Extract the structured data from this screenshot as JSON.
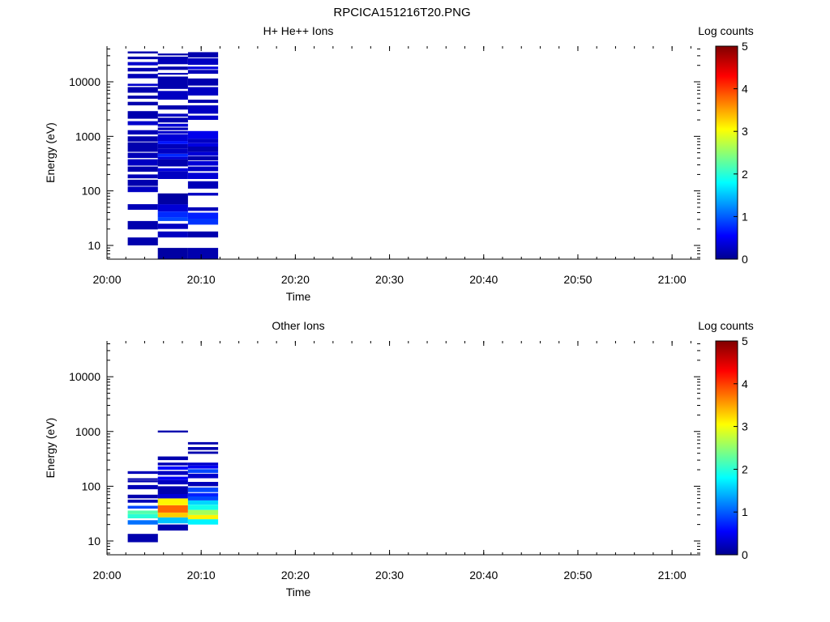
{
  "figure_title": "RPCICA151216T20.PNG",
  "chart_data": [
    {
      "type": "heatmap",
      "title": "H+ He++ Ions",
      "xlabel": "Time",
      "ylabel": "Energy (eV)",
      "yscale": "log",
      "xlim": [
        "20:00",
        "21:03"
      ],
      "ylim": [
        5.6,
        45000
      ],
      "xticks": [
        "20:00",
        "20:10",
        "20:20",
        "20:30",
        "20:40",
        "20:50",
        "21:00"
      ],
      "yticks": [
        "10",
        "100",
        "1000",
        "10000"
      ],
      "colorbar": {
        "label": "Log counts",
        "range": [
          0,
          5
        ],
        "ticks": [
          "0",
          "1",
          "2",
          "3",
          "4",
          "5"
        ]
      },
      "columns": [
        {
          "start": "20:02.2",
          "end": "20:05.4",
          "bins": [
            {
              "lo": 10,
              "hi": 14,
              "v": 0.15
            },
            {
              "lo": 19.6,
              "hi": 28,
              "v": 0.15
            },
            {
              "lo": 45,
              "hi": 57,
              "v": 0.2
            },
            {
              "lo": 95,
              "hi": 120,
              "v": 0.25
            },
            {
              "lo": 123,
              "hi": 160,
              "v": 0.15
            },
            {
              "lo": 170,
              "hi": 200,
              "v": 0.2
            },
            {
              "lo": 225,
              "hi": 280,
              "v": 0.15
            },
            {
              "lo": 290,
              "hi": 380,
              "v": 0.25
            },
            {
              "lo": 400,
              "hi": 500,
              "v": 0.2
            },
            {
              "lo": 520,
              "hi": 780,
              "v": 0.15
            },
            {
              "lo": 800,
              "hi": 1000,
              "v": 0.15
            },
            {
              "lo": 1080,
              "hi": 1300,
              "v": 0.2
            },
            {
              "lo": 1600,
              "hi": 1900,
              "v": 0.3
            },
            {
              "lo": 2100,
              "hi": 2900,
              "v": 0.15
            },
            {
              "lo": 3700,
              "hi": 4300,
              "v": 0.15
            },
            {
              "lo": 4900,
              "hi": 5600,
              "v": 0.15
            },
            {
              "lo": 6300,
              "hi": 8000,
              "v": 0.15
            },
            {
              "lo": 8400,
              "hi": 9200,
              "v": 0.3
            },
            {
              "lo": 11600,
              "hi": 14000,
              "v": 0.2
            },
            {
              "lo": 15500,
              "hi": 18000,
              "v": 0.15
            },
            {
              "lo": 20000,
              "hi": 23000,
              "v": 0.3
            },
            {
              "lo": 26000,
              "hi": 29000,
              "v": 0.15
            },
            {
              "lo": 33000,
              "hi": 36000,
              "v": 0.15
            }
          ]
        },
        {
          "start": "20:05.4",
          "end": "20:08.6",
          "bins": [
            {
              "lo": 5.6,
              "hi": 9,
              "v": 0.1
            },
            {
              "lo": 14,
              "hi": 18,
              "v": 0.25
            },
            {
              "lo": 20,
              "hi": 25,
              "v": 0.25
            },
            {
              "lo": 28,
              "hi": 33,
              "v": 0.9
            },
            {
              "lo": 33,
              "hi": 42,
              "v": 0.75
            },
            {
              "lo": 42,
              "hi": 57,
              "v": 0.35
            },
            {
              "lo": 57,
              "hi": 90,
              "v": 0.1
            },
            {
              "lo": 165,
              "hi": 230,
              "v": 0.25
            },
            {
              "lo": 230,
              "hi": 260,
              "v": 0.4
            },
            {
              "lo": 280,
              "hi": 380,
              "v": 0.15
            },
            {
              "lo": 380,
              "hi": 420,
              "v": 0.35
            },
            {
              "lo": 420,
              "hi": 480,
              "v": 0.75
            },
            {
              "lo": 480,
              "hi": 600,
              "v": 0.25
            },
            {
              "lo": 600,
              "hi": 720,
              "v": 0.2
            },
            {
              "lo": 720,
              "hi": 820,
              "v": 0.65
            },
            {
              "lo": 820,
              "hi": 1100,
              "v": 0.35
            },
            {
              "lo": 1130,
              "hi": 1250,
              "v": 0.3
            },
            {
              "lo": 1300,
              "hi": 1450,
              "v": 0.2
            },
            {
              "lo": 1500,
              "hi": 1700,
              "v": 0.35
            },
            {
              "lo": 1800,
              "hi": 2200,
              "v": 0.15
            },
            {
              "lo": 2300,
              "hi": 2600,
              "v": 0.25
            },
            {
              "lo": 3100,
              "hi": 3700,
              "v": 0.15
            },
            {
              "lo": 4700,
              "hi": 6800,
              "v": 0.25
            },
            {
              "lo": 7400,
              "hi": 12500,
              "v": 0.15
            },
            {
              "lo": 13500,
              "hi": 14500,
              "v": 0.2
            },
            {
              "lo": 16500,
              "hi": 19000,
              "v": 0.15
            },
            {
              "lo": 21000,
              "hi": 29000,
              "v": 0.2
            },
            {
              "lo": 30500,
              "hi": 33000,
              "v": 0.15
            }
          ]
        },
        {
          "start": "20:08.6",
          "end": "20:11.8",
          "bins": [
            {
              "lo": 5.6,
              "hi": 9,
              "v": 0.15
            },
            {
              "lo": 14,
              "hi": 18,
              "v": 0.15
            },
            {
              "lo": 24,
              "hi": 31,
              "v": 0.8
            },
            {
              "lo": 31,
              "hi": 40,
              "v": 0.7
            },
            {
              "lo": 43,
              "hi": 50,
              "v": 0.2
            },
            {
              "lo": 82,
              "hi": 92,
              "v": 0.25
            },
            {
              "lo": 110,
              "hi": 150,
              "v": 0.2
            },
            {
              "lo": 165,
              "hi": 215,
              "v": 0.35
            },
            {
              "lo": 230,
              "hi": 280,
              "v": 0.25
            },
            {
              "lo": 290,
              "hi": 350,
              "v": 0.35
            },
            {
              "lo": 360,
              "hi": 430,
              "v": 0.15
            },
            {
              "lo": 440,
              "hi": 520,
              "v": 0.35
            },
            {
              "lo": 520,
              "hi": 650,
              "v": 0.15
            },
            {
              "lo": 650,
              "hi": 760,
              "v": 0.4
            },
            {
              "lo": 760,
              "hi": 900,
              "v": 0.25
            },
            {
              "lo": 900,
              "hi": 1250,
              "v": 0.45
            },
            {
              "lo": 2000,
              "hi": 2400,
              "v": 0.3
            },
            {
              "lo": 2600,
              "hi": 3700,
              "v": 0.25
            },
            {
              "lo": 4100,
              "hi": 4700,
              "v": 0.15
            },
            {
              "lo": 5600,
              "hi": 8000,
              "v": 0.25
            },
            {
              "lo": 8500,
              "hi": 11500,
              "v": 0.15
            },
            {
              "lo": 14000,
              "hi": 16500,
              "v": 0.2
            },
            {
              "lo": 17000,
              "hi": 19000,
              "v": 0.4
            },
            {
              "lo": 20500,
              "hi": 27000,
              "v": 0.25
            },
            {
              "lo": 28000,
              "hi": 35000,
              "v": 0.15
            }
          ]
        }
      ]
    },
    {
      "type": "heatmap",
      "title": "Other Ions",
      "xlabel": "Time",
      "ylabel": "Energy (eV)",
      "yscale": "log",
      "xlim": [
        "20:00",
        "21:03"
      ],
      "ylim": [
        5.6,
        45000
      ],
      "xticks": [
        "20:00",
        "20:10",
        "20:20",
        "20:30",
        "20:40",
        "20:50",
        "21:00"
      ],
      "yticks": [
        "10",
        "100",
        "1000",
        "10000"
      ],
      "colorbar": {
        "label": "Log counts",
        "range": [
          0,
          5
        ],
        "ticks": [
          "0",
          "1",
          "2",
          "3",
          "4",
          "5"
        ]
      },
      "columns": [
        {
          "start": "20:02.2",
          "end": "20:05.4",
          "bins": [
            {
              "lo": 9.5,
              "hi": 13.5,
              "v": 0.15
            },
            {
              "lo": 20,
              "hi": 24,
              "v": 1.1
            },
            {
              "lo": 26,
              "hi": 31,
              "v": 2.0
            },
            {
              "lo": 31,
              "hi": 36,
              "v": 2.2
            },
            {
              "lo": 39,
              "hi": 44,
              "v": 0.9
            },
            {
              "lo": 50,
              "hi": 57,
              "v": 0.2
            },
            {
              "lo": 60,
              "hi": 70,
              "v": 0.15
            },
            {
              "lo": 88,
              "hi": 105,
              "v": 0.2
            },
            {
              "lo": 118,
              "hi": 128,
              "v": 0.15
            },
            {
              "lo": 130,
              "hi": 140,
              "v": 0.15
            },
            {
              "lo": 168,
              "hi": 188,
              "v": 0.2
            }
          ]
        },
        {
          "start": "20:05.4",
          "end": "20:08.6",
          "bins": [
            {
              "lo": 15.5,
              "hi": 20,
              "v": 0.15
            },
            {
              "lo": 21,
              "hi": 27,
              "v": 1.5
            },
            {
              "lo": 27,
              "hi": 33,
              "v": 3.3
            },
            {
              "lo": 33,
              "hi": 45,
              "v": 3.8
            },
            {
              "lo": 45,
              "hi": 60,
              "v": 3.1
            },
            {
              "lo": 60,
              "hi": 72,
              "v": 0.35
            },
            {
              "lo": 72,
              "hi": 100,
              "v": 0.15
            },
            {
              "lo": 108,
              "hi": 130,
              "v": 0.25
            },
            {
              "lo": 130,
              "hi": 150,
              "v": 0.5
            },
            {
              "lo": 160,
              "hi": 190,
              "v": 0.25
            },
            {
              "lo": 200,
              "hi": 230,
              "v": 0.6
            },
            {
              "lo": 240,
              "hi": 270,
              "v": 0.2
            },
            {
              "lo": 300,
              "hi": 350,
              "v": 0.15
            },
            {
              "lo": 960,
              "hi": 1040,
              "v": 0.15
            }
          ]
        },
        {
          "start": "20:08.6",
          "end": "20:11.8",
          "bins": [
            {
              "lo": 20,
              "hi": 25,
              "v": 1.75
            },
            {
              "lo": 25,
              "hi": 30,
              "v": 3.1
            },
            {
              "lo": 30,
              "hi": 37,
              "v": 2.6
            },
            {
              "lo": 37,
              "hi": 46,
              "v": 1.9
            },
            {
              "lo": 46,
              "hi": 55,
              "v": 1.6
            },
            {
              "lo": 55,
              "hi": 65,
              "v": 0.9
            },
            {
              "lo": 65,
              "hi": 75,
              "v": 0.7
            },
            {
              "lo": 78,
              "hi": 95,
              "v": 0.9
            },
            {
              "lo": 100,
              "hi": 120,
              "v": 0.2
            },
            {
              "lo": 140,
              "hi": 170,
              "v": 0.3
            },
            {
              "lo": 175,
              "hi": 205,
              "v": 0.9
            },
            {
              "lo": 210,
              "hi": 240,
              "v": 0.5
            },
            {
              "lo": 240,
              "hi": 270,
              "v": 0.3
            },
            {
              "lo": 390,
              "hi": 430,
              "v": 0.15
            },
            {
              "lo": 460,
              "hi": 520,
              "v": 0.15
            },
            {
              "lo": 580,
              "hi": 640,
              "v": 0.15
            }
          ]
        }
      ]
    }
  ]
}
